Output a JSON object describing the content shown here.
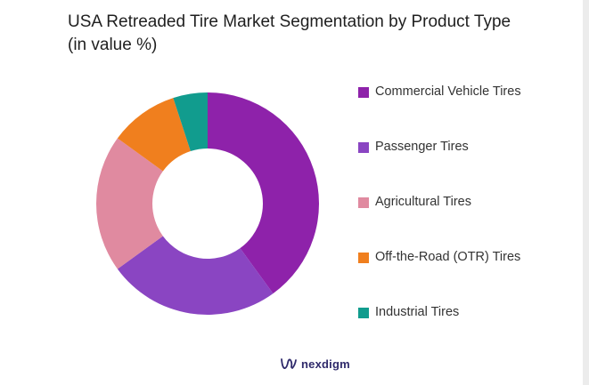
{
  "chart_data": {
    "type": "pie",
    "title": "USA Retreaded Tire Market Segmentation by Product Type",
    "subtitle": "(in value %)",
    "categories": [
      "Commercial Vehicle Tires",
      "Passenger Tires",
      "Agricultural Tires",
      "Off-the-Road (OTR) Tires",
      "Industrial Tires"
    ],
    "values": [
      40,
      25,
      20,
      10,
      5
    ],
    "colors": [
      "#8e22aa",
      "#8a45c2",
      "#e08aa0",
      "#f07f1e",
      "#119c8e"
    ],
    "donut": true,
    "legend_position": "right"
  },
  "brand": {
    "name": "nexdigm",
    "logo_icon": "nexdigm-wave-icon",
    "color": "#2f2a6b"
  }
}
